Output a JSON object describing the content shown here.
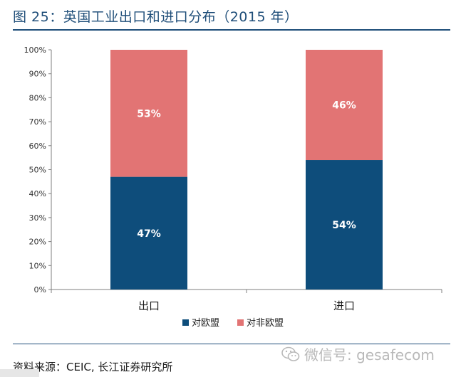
{
  "header": {
    "title": "图 25：英国工业出口和进口分布（2015 年）"
  },
  "chart_data": {
    "type": "bar",
    "stacked": true,
    "categories": [
      "出口",
      "进口"
    ],
    "series": [
      {
        "name": "对欧盟",
        "values": [
          47,
          54
        ],
        "labels": [
          "47%",
          "54%"
        ],
        "color": "#0e4d7b"
      },
      {
        "name": "对非欧盟",
        "values": [
          53,
          46
        ],
        "labels": [
          "53%",
          "46%"
        ],
        "color": "#e27474"
      }
    ],
    "ylim": [
      0,
      100
    ],
    "yticks": [
      "0%",
      "10%",
      "20%",
      "30%",
      "40%",
      "50%",
      "60%",
      "70%",
      "80%",
      "90%",
      "100%"
    ],
    "grid": false,
    "legend": "bottom-center",
    "xlabel": "",
    "ylabel": ""
  },
  "footer": {
    "source": "资料来源：CEIC, 长江证券研究所",
    "watermark": "微信号: gesafecom",
    "watermark_icon": "wechat-icon"
  }
}
